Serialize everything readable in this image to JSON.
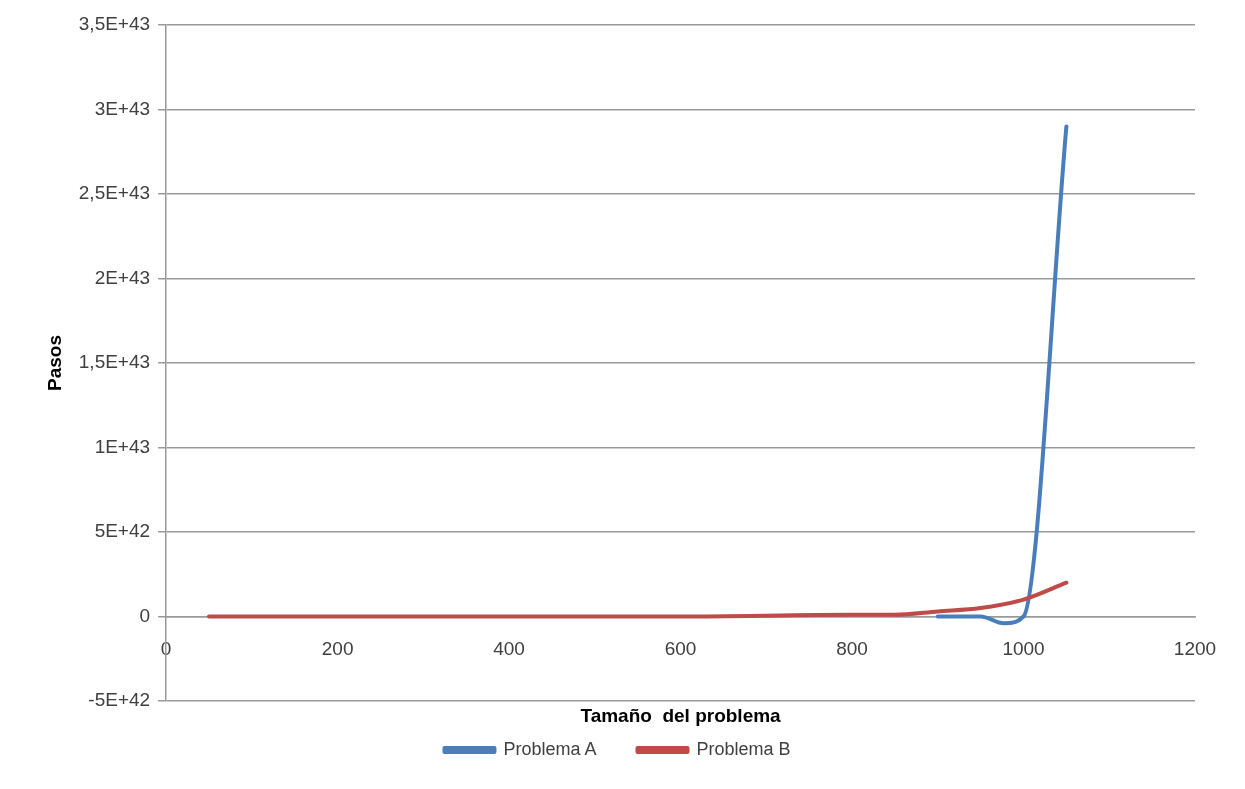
{
  "chart_data": {
    "type": "line",
    "xlabel": "Tamaño  del problema",
    "ylabel": "Pasos",
    "xlim": [
      0,
      1200
    ],
    "xticks": [
      0,
      200,
      400,
      600,
      800,
      1000,
      1200
    ],
    "ylim": [
      -5e+42,
      3.5e+43
    ],
    "yticks": [
      {
        "value": -5e+42,
        "label": "-5E+42"
      },
      {
        "value": 0,
        "label": "0"
      },
      {
        "value": 5e+42,
        "label": "5E+42"
      },
      {
        "value": 1e+43,
        "label": "1E+43"
      },
      {
        "value": 1.5e+43,
        "label": "1,5E+43"
      },
      {
        "value": 2e+43,
        "label": "2E+43"
      },
      {
        "value": 2.5e+43,
        "label": "2,5E+43"
      },
      {
        "value": 3e+43,
        "label": "3E+43"
      },
      {
        "value": 3.5e+43,
        "label": "3,5E+43"
      }
    ],
    "grid": "y",
    "legend": "bottom",
    "marker": "none",
    "line_style": "solid",
    "series": [
      {
        "name": "Problema A",
        "color": "#4a7ebb",
        "x": [
          900,
          950,
          977,
          1000,
          1050
        ],
        "values": [
          0,
          0,
          -4e+41,
          0,
          2.9e+43
        ]
      },
      {
        "name": "Problema B",
        "color": "#be4b48",
        "x": [
          50,
          200,
          400,
          600,
          800,
          850,
          900,
          950,
          1000,
          1050
        ],
        "values": [
          0,
          0,
          0,
          0,
          1e+41,
          1e+41,
          3e+41,
          5e+41,
          1e+42,
          2e+42
        ]
      }
    ]
  }
}
